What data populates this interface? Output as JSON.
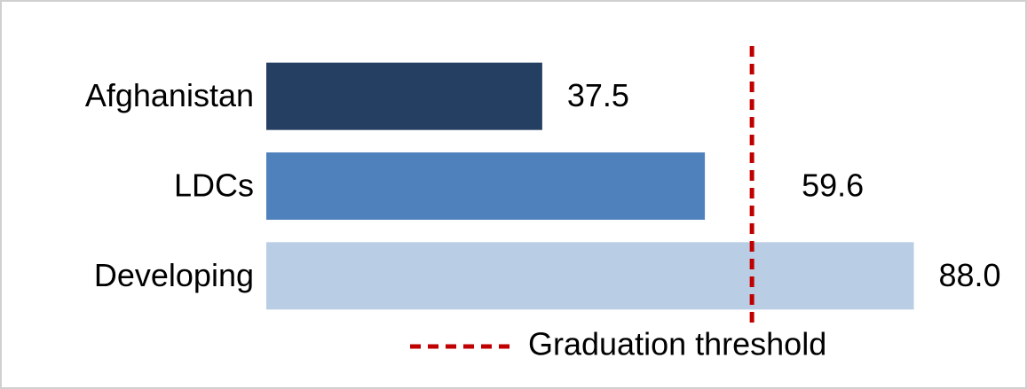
{
  "chart_data": {
    "type": "hbar",
    "categories": [
      "Afghanistan",
      "LDCs",
      "Developing"
    ],
    "values": [
      37.5,
      59.6,
      88.0
    ],
    "value_labels": [
      "37.5",
      "59.6",
      "88.0"
    ],
    "colors": [
      "#253f62",
      "#4f81bd",
      "#b9cde5"
    ],
    "xlim": [
      0,
      100
    ],
    "threshold": {
      "value": 66,
      "label": "Graduation threshold",
      "color": "#c00000"
    }
  }
}
